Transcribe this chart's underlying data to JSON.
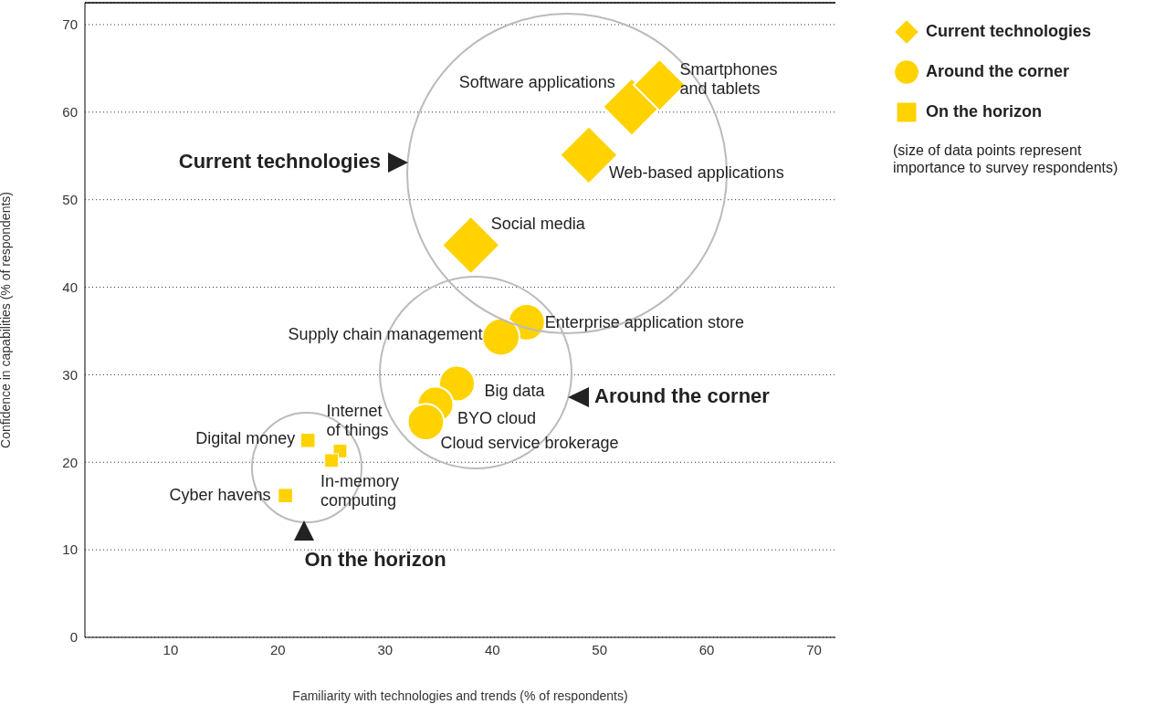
{
  "chart_data": {
    "type": "bubble",
    "xlabel": "Familiarity with technologies and trends (% of respondents)",
    "ylabel": "Confidence in capabilities (% of respondents)",
    "xlim": [
      2,
      72
    ],
    "ylim": [
      0,
      72.5
    ],
    "xticks": [
      10,
      20,
      30,
      40,
      50,
      60,
      70
    ],
    "yticks": [
      0,
      10,
      20,
      30,
      40,
      50,
      60,
      70
    ],
    "grid": "y",
    "legend": "top right",
    "series": [
      {
        "name": "Current technologies",
        "color": "#ffd200",
        "marker": "diamond",
        "x": [
          53.0,
          55.6,
          49.0,
          38.0
        ],
        "values": [
          60.6,
          63.1,
          55.1,
          44.8
        ],
        "sizes": [
          1,
          0.8,
          1,
          1
        ]
      },
      {
        "name": "Around the corner",
        "color": "#ffd200",
        "marker": "circle",
        "x": [
          43.2,
          40.8,
          36.7,
          34.7,
          33.8
        ],
        "values": [
          36.0,
          34.3,
          29.0,
          26.6,
          24.6
        ],
        "sizes": [
          0.62,
          0.65,
          0.6,
          0.6,
          0.62
        ]
      },
      {
        "name": "On the horizon",
        "color": "#ffd200",
        "marker": "square",
        "x": [
          22.8,
          25.8,
          25.0,
          20.7
        ],
        "values": [
          22.5,
          21.3,
          20.2,
          16.2
        ],
        "sizes": [
          0.12,
          0.11,
          0.11,
          0.12
        ]
      }
    ],
    "annotations": [
      "Current technologies",
      "Around the corner",
      "On the horizon",
      "(size of data points represent\nimportance to survey respondents)",
      {
        "text": "Software applications",
        "x": 53.0,
        "y": 60.6
      },
      {
        "text": "Smartphones\nand tablets",
        "x": 55.6,
        "y": 63.1
      },
      {
        "text": "Web-based applications",
        "x": 49.0,
        "y": 55.1
      },
      {
        "text": "Social media",
        "x": 38.0,
        "y": 44.8
      },
      {
        "text": "Enterprise application store",
        "x": 43.2,
        "y": 36.0
      },
      {
        "text": "Supply chain management",
        "x": 40.8,
        "y": 34.3
      },
      {
        "text": "Big data",
        "x": 36.7,
        "y": 29.0
      },
      {
        "text": "BYO cloud",
        "x": 34.7,
        "y": 26.6
      },
      {
        "text": "Cloud service brokerage",
        "x": 33.8,
        "y": 24.6
      },
      {
        "text": "Digital money",
        "x": 22.8,
        "y": 22.5
      },
      {
        "text": "Internet\nof things",
        "x": 25.8,
        "y": 21.3
      },
      {
        "text": "In-memory\ncomputing",
        "x": 25.0,
        "y": 20.2
      },
      {
        "text": "Cyber havens",
        "x": 20.7,
        "y": 16.2
      }
    ]
  }
}
